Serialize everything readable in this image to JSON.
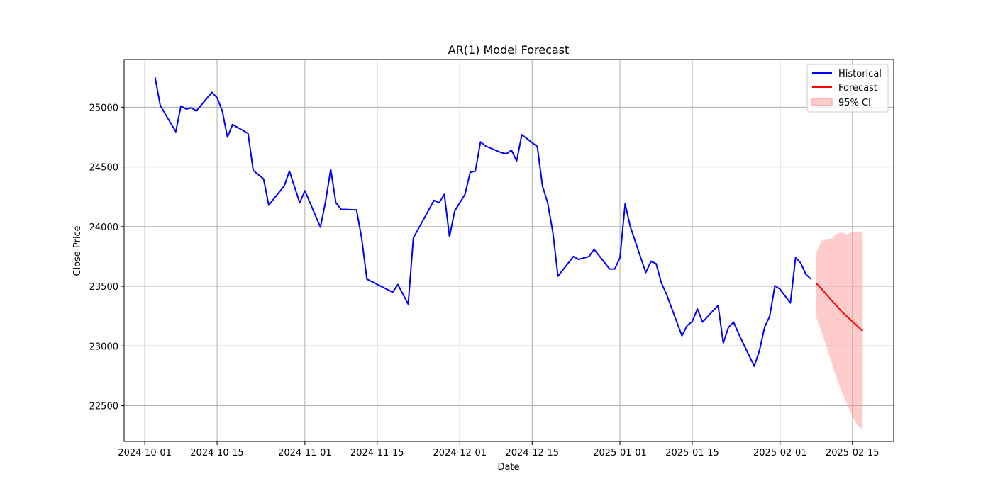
{
  "chart_data": {
    "type": "line",
    "title": "AR(1) Model Forecast",
    "xlabel": "Date",
    "ylabel": "Close Price",
    "xlim": [
      "2024-09-27",
      "2025-02-23"
    ],
    "ylim": [
      22200,
      25400
    ],
    "x_ticks": [
      "2024-10-01",
      "2024-10-15",
      "2024-11-01",
      "2024-11-15",
      "2024-12-01",
      "2024-12-15",
      "2025-01-01",
      "2025-01-15",
      "2025-02-01",
      "2025-02-15"
    ],
    "y_ticks": [
      22500,
      23000,
      23500,
      24000,
      24500,
      25000
    ],
    "grid": true,
    "legend_position": "top-right",
    "colors": {
      "historical": "#0000ff",
      "forecast": "#ff0000",
      "ci_fill": "#ff9999",
      "grid": "#b0b0b0"
    },
    "series": [
      {
        "name": "Historical",
        "kind": "line",
        "x": [
          "2024-10-03",
          "2024-10-04",
          "2024-10-07",
          "2024-10-08",
          "2024-10-09",
          "2024-10-10",
          "2024-10-11",
          "2024-10-14",
          "2024-10-15",
          "2024-10-16",
          "2024-10-17",
          "2024-10-18",
          "2024-10-21",
          "2024-10-22",
          "2024-10-24",
          "2024-10-25",
          "2024-10-28",
          "2024-10-29",
          "2024-10-31",
          "2024-11-01",
          "2024-11-04",
          "2024-11-05",
          "2024-11-06",
          "2024-11-07",
          "2024-11-08",
          "2024-11-11",
          "2024-11-12",
          "2024-11-13",
          "2024-11-18",
          "2024-11-19",
          "2024-11-21",
          "2024-11-22",
          "2024-11-26",
          "2024-11-27",
          "2024-11-28",
          "2024-11-29",
          "2024-11-30",
          "2024-12-02",
          "2024-12-03",
          "2024-12-04",
          "2024-12-05",
          "2024-12-06",
          "2024-12-09",
          "2024-12-10",
          "2024-12-11",
          "2024-12-12",
          "2024-12-13",
          "2024-12-16",
          "2024-12-17",
          "2024-12-18",
          "2024-12-19",
          "2024-12-20",
          "2024-12-23",
          "2024-12-24",
          "2024-12-26",
          "2024-12-27",
          "2024-12-30",
          "2024-12-31",
          "2025-01-01",
          "2025-01-02",
          "2025-01-03",
          "2025-01-06",
          "2025-01-07",
          "2025-01-08",
          "2025-01-09",
          "2025-01-10",
          "2025-01-13",
          "2025-01-14",
          "2025-01-15",
          "2025-01-16",
          "2025-01-17",
          "2025-01-20",
          "2025-01-21",
          "2025-01-22",
          "2025-01-23",
          "2025-01-24",
          "2025-01-27",
          "2025-01-28",
          "2025-01-29",
          "2025-01-30",
          "2025-01-31",
          "2025-02-01",
          "2025-02-03",
          "2025-02-04",
          "2025-02-05",
          "2025-02-06",
          "2025-02-07"
        ],
        "values": [
          25250,
          25015,
          24795,
          25010,
          24985,
          24995,
          24970,
          25125,
          25080,
          24970,
          24750,
          24855,
          24780,
          24470,
          24400,
          24180,
          24340,
          24465,
          24200,
          24300,
          23995,
          24210,
          24480,
          24200,
          24145,
          24140,
          23900,
          23560,
          23450,
          23515,
          23350,
          23905,
          24220,
          24200,
          24270,
          23915,
          24130,
          24270,
          24455,
          24465,
          24710,
          24675,
          24620,
          24610,
          24640,
          24550,
          24770,
          24670,
          24340,
          24200,
          23955,
          23585,
          23750,
          23725,
          23750,
          23810,
          23645,
          23645,
          23740,
          24190,
          24000,
          23615,
          23710,
          23690,
          23530,
          23435,
          23085,
          23170,
          23205,
          23310,
          23200,
          23340,
          23025,
          23155,
          23200,
          23100,
          22830,
          22960,
          23155,
          23250,
          23505,
          23475,
          23360,
          23740,
          23695,
          23600,
          23560
        ]
      },
      {
        "name": "Forecast",
        "kind": "line",
        "x": [
          "2025-02-08",
          "2025-02-09",
          "2025-02-10",
          "2025-02-11",
          "2025-02-12",
          "2025-02-13",
          "2025-02-14",
          "2025-02-15",
          "2025-02-16",
          "2025-02-17"
        ],
        "values": [
          23525,
          23480,
          23430,
          23380,
          23335,
          23285,
          23245,
          23205,
          23165,
          23125
        ]
      },
      {
        "name": "95% CI",
        "kind": "band",
        "x": [
          "2025-02-08",
          "2025-02-09",
          "2025-02-10",
          "2025-02-11",
          "2025-02-12",
          "2025-02-13",
          "2025-02-14",
          "2025-02-15",
          "2025-02-16",
          "2025-02-17"
        ],
        "lower": [
          23240,
          23120,
          22990,
          22860,
          22720,
          22610,
          22510,
          22410,
          22330,
          22300
        ],
        "upper": [
          23780,
          23880,
          23890,
          23900,
          23940,
          23950,
          23935,
          23955,
          23960,
          23950
        ]
      }
    ]
  }
}
